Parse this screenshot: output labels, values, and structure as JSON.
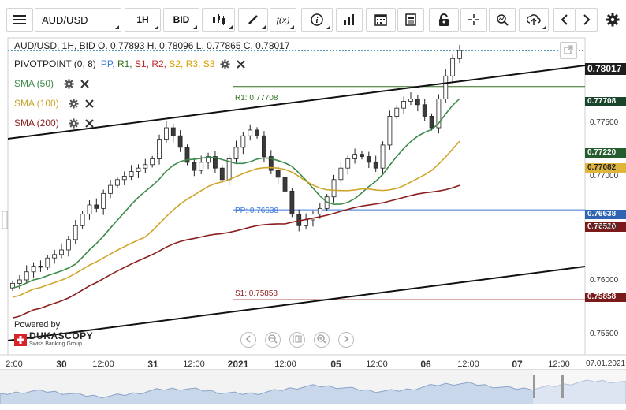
{
  "toolbar": {
    "menu_icon": "hamburger-icon",
    "symbol": "AUD/USD",
    "timeframe": "1H",
    "price_type": "BID",
    "fx_label": "f(x)",
    "icons": [
      "candlestick-icon",
      "draw-icon",
      "fx-icon",
      "info-icon",
      "volume-icon",
      "calendar-icon",
      "news-icon",
      "lock-icon",
      "crosshair-icon",
      "zoom-icon",
      "upload-icon",
      "prev-icon",
      "next-icon",
      "gear-icon"
    ]
  },
  "header": {
    "ohlc": "AUD/USD, 1H, BID   O. 0.77893 H. 0.78096 L. 0.77865 C. 0.78017",
    "pivot_name": "PIVOTPOINT (0, 8)",
    "pivot_levels": [
      "PP,",
      "R1,",
      "S1,",
      "R2,",
      "S2,",
      "R3,",
      "S3"
    ],
    "pivot_colors": [
      "#3c78d8",
      "#2e6f1e",
      "#c0282c",
      "#c0282c",
      "#d8a000",
      "#d8a000",
      "#d8a000"
    ]
  },
  "indicators": [
    {
      "label": "SMA (50)",
      "color": "#3d8a4a"
    },
    {
      "label": "SMA (100)",
      "color": "#c9a227"
    },
    {
      "label": "SMA (200)",
      "color": "#8b1e1e"
    }
  ],
  "price_labels": {
    "last": "0.78017",
    "r1": "0.77708",
    "sma50": "0.77220",
    "sma100": "0.77082",
    "pp": "0.76638",
    "sma200": "0.76520",
    "s1": "0.75858"
  },
  "level_texts": {
    "r1": "R1: 0.77708",
    "pp": "PP: 0.76638",
    "s1": "S1: 0.75858"
  },
  "branding": {
    "powered_by": "Powered by",
    "name": "DUKASCOPY",
    "sub": "Swiss Banking Group"
  },
  "chart_data": {
    "type": "candlestick",
    "title": "AUD/USD, 1H, BID",
    "y_ticks": [
      "0.77500",
      "0.77000",
      "0.76500",
      "0.76000",
      "0.75500"
    ],
    "ylim": [
      0.7538,
      0.7813
    ],
    "x_ticks": [
      "2:00",
      "30",
      "12:00",
      "31",
      "12:00",
      "2021",
      "12:00",
      "05",
      "12:00",
      "06",
      "12:00",
      "07",
      "12:00",
      "07.01.2021"
    ],
    "legend": [
      "SMA (50)",
      "SMA (100)",
      "SMA (200)"
    ],
    "pivot_levels": {
      "R1": 0.77708,
      "PP": 0.76638,
      "S1": 0.75858
    },
    "last_close": 0.78017,
    "sma_last": {
      "SMA (50)": 0.7722,
      "SMA (100)": 0.77082,
      "SMA (200)": 0.7652
    },
    "candles_close": [
      0.76,
      0.7603,
      0.761,
      0.7615,
      0.7614,
      0.7622,
      0.7625,
      0.7629,
      0.7638,
      0.765,
      0.766,
      0.7668,
      0.7665,
      0.7678,
      0.7685,
      0.769,
      0.7693,
      0.7697,
      0.77,
      0.7703,
      0.7708,
      0.7725,
      0.7735,
      0.7728,
      0.7718,
      0.7705,
      0.7698,
      0.7705,
      0.771,
      0.77,
      0.769,
      0.7708,
      0.7718,
      0.7728,
      0.7733,
      0.7728,
      0.771,
      0.7698,
      0.7692,
      0.768,
      0.766,
      0.765,
      0.7655,
      0.766,
      0.7665,
      0.7675,
      0.769,
      0.77,
      0.7708,
      0.7712,
      0.771,
      0.7705,
      0.77,
      0.772,
      0.7745,
      0.7752,
      0.7758,
      0.776,
      0.7755,
      0.7745,
      0.7735,
      0.776,
      0.778,
      0.7795,
      0.7802
    ]
  }
}
